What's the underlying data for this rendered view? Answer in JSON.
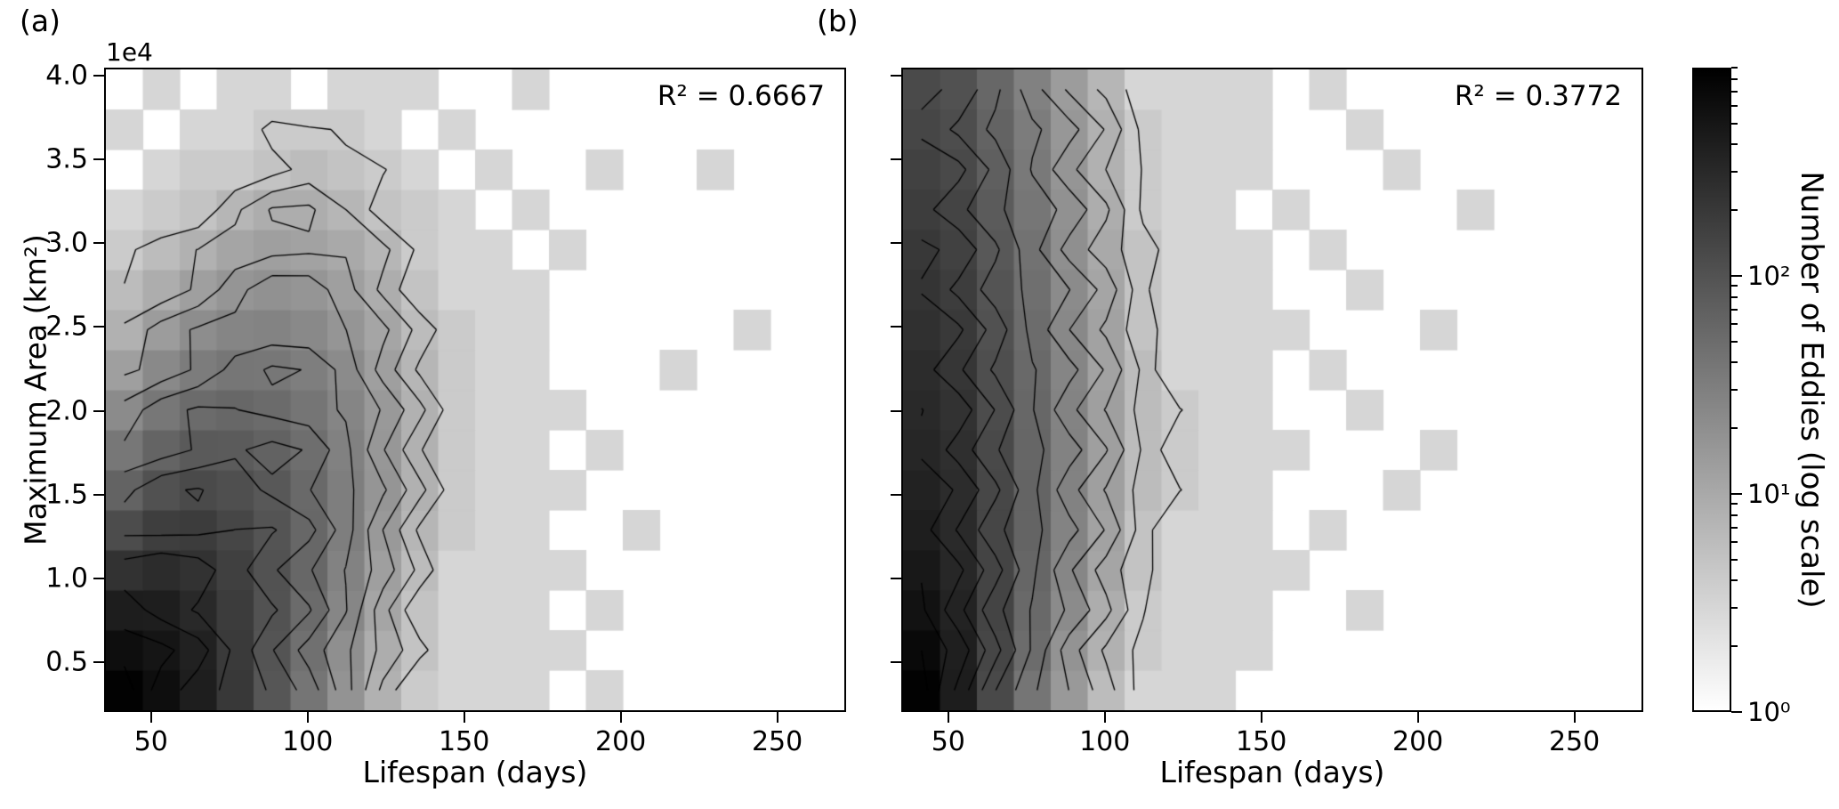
{
  "chart_data": {
    "type": "heatmap",
    "subtype": "2d-histogram-with-contours",
    "colormap": "binary grayscale, white (low) to black (high), log normalization",
    "panels": [
      {
        "id": "a",
        "corner_label": "(a)",
        "r2_label": "R² = 0.6667",
        "xlabel": "Lifespan (days)",
        "ylabel": "Maximum Area (km²)",
        "y_offset_label": "1e4",
        "x_range": [
          35,
          272
        ],
        "y_range": [
          2000,
          40500
        ],
        "x_ticks": [
          50,
          100,
          150,
          200,
          250
        ],
        "x_tick_labels": [
          "50",
          "100",
          "150",
          "200",
          "250"
        ],
        "y_ticks": [
          5000,
          10000,
          15000,
          20000,
          25000,
          30000,
          35000,
          40000
        ],
        "y_tick_labels": [
          "0.5",
          "1.0",
          "1.5",
          "2.0",
          "2.5",
          "3.0",
          "3.5",
          "4.0"
        ],
        "contour_levels_log10": [
          0.7,
          0.9,
          1.1,
          1.3,
          1.5,
          1.7,
          1.9,
          2.1,
          2.3,
          2.5,
          2.7,
          2.85
        ],
        "bins": {
          "cols": 20,
          "rows": 16,
          "order": "rows bottom-to-top, cols left-to-right"
        },
        "counts": [
          [
            850,
            620,
            400,
            200,
            90,
            40,
            18,
            8,
            4,
            3,
            3,
            3,
            0,
            3,
            0,
            0,
            0,
            0,
            0,
            0
          ],
          [
            620,
            520,
            370,
            190,
            95,
            45,
            20,
            9,
            5,
            3,
            3,
            3,
            3,
            0,
            0,
            0,
            0,
            0,
            0,
            0
          ],
          [
            420,
            400,
            300,
            180,
            100,
            52,
            25,
            11,
            5,
            3,
            3,
            3,
            0,
            3,
            0,
            0,
            0,
            0,
            0,
            0
          ],
          [
            240,
            280,
            240,
            165,
            100,
            57,
            28,
            13,
            6,
            3,
            3,
            3,
            3,
            0,
            0,
            0,
            0,
            0,
            0,
            0
          ],
          [
            120,
            170,
            180,
            140,
            95,
            58,
            31,
            15,
            7,
            4,
            3,
            3,
            0,
            0,
            3,
            0,
            0,
            0,
            0,
            0
          ],
          [
            65,
            105,
            125,
            110,
            85,
            55,
            31,
            17,
            8,
            4,
            3,
            3,
            3,
            0,
            0,
            0,
            0,
            0,
            0,
            0
          ],
          [
            38,
            62,
            82,
            80,
            66,
            48,
            29,
            16,
            8,
            4,
            3,
            3,
            0,
            3,
            0,
            0,
            0,
            0,
            0,
            0
          ],
          [
            22,
            38,
            52,
            57,
            52,
            40,
            26,
            15,
            8,
            4,
            3,
            3,
            3,
            0,
            0,
            0,
            0,
            0,
            0,
            0
          ],
          [
            13,
            23,
            33,
            39,
            38,
            31,
            22,
            13,
            7,
            4,
            3,
            3,
            0,
            0,
            0,
            3,
            0,
            0,
            0,
            0
          ],
          [
            8,
            14,
            21,
            26,
            27,
            23,
            17,
            11,
            6,
            4,
            3,
            3,
            0,
            0,
            0,
            0,
            0,
            3,
            0,
            0
          ],
          [
            6,
            9,
            13,
            17,
            19,
            17,
            13,
            9,
            5,
            3,
            3,
            3,
            0,
            0,
            0,
            0,
            0,
            0,
            0,
            0
          ],
          [
            4,
            6,
            8,
            11,
            13,
            12,
            10,
            7,
            4,
            3,
            3,
            0,
            3,
            0,
            0,
            0,
            0,
            0,
            0,
            0
          ],
          [
            3,
            4,
            5,
            7,
            9,
            9,
            7,
            5,
            4,
            3,
            0,
            3,
            0,
            0,
            0,
            0,
            0,
            0,
            0,
            0
          ],
          [
            0,
            3,
            4,
            4,
            5,
            6,
            5,
            4,
            3,
            0,
            3,
            0,
            0,
            3,
            0,
            0,
            3,
            0,
            0,
            0
          ],
          [
            3,
            0,
            3,
            3,
            4,
            4,
            4,
            3,
            0,
            3,
            0,
            0,
            0,
            0,
            0,
            0,
            0,
            0,
            0,
            0
          ],
          [
            0,
            3,
            0,
            3,
            3,
            0,
            3,
            3,
            3,
            0,
            0,
            3,
            0,
            0,
            0,
            0,
            0,
            0,
            0,
            0
          ]
        ]
      },
      {
        "id": "b",
        "corner_label": "(b)",
        "r2_label": "R² = 0.3772",
        "xlabel": "Lifespan (days)",
        "x_range": [
          35,
          272
        ],
        "y_range": [
          2000,
          40500
        ],
        "x_ticks": [
          50,
          100,
          150,
          200,
          250
        ],
        "x_tick_labels": [
          "50",
          "100",
          "150",
          "200",
          "250"
        ],
        "y_ticks": [
          5000,
          10000,
          15000,
          20000,
          25000,
          30000,
          35000,
          40000
        ],
        "contour_levels_log10": [
          0.7,
          0.9,
          1.1,
          1.3,
          1.5,
          1.7,
          1.9,
          2.1,
          2.3,
          2.5,
          2.7,
          2.85
        ],
        "bins": {
          "cols": 20,
          "rows": 16,
          "order": "rows bottom-to-top, cols left-to-right"
        },
        "counts": [
          [
            850,
            420,
            130,
            40,
            15,
            6,
            3,
            3,
            3,
            0,
            0,
            0,
            0,
            0,
            0,
            0,
            0,
            0,
            0,
            0
          ],
          [
            700,
            390,
            140,
            50,
            18,
            8,
            4,
            3,
            3,
            3,
            0,
            0,
            0,
            0,
            0,
            0,
            0,
            0,
            0,
            0
          ],
          [
            560,
            350,
            145,
            55,
            22,
            9,
            4,
            3,
            3,
            3,
            0,
            0,
            3,
            0,
            0,
            0,
            0,
            0,
            0,
            0
          ],
          [
            470,
            320,
            145,
            60,
            25,
            11,
            5,
            3,
            3,
            3,
            3,
            0,
            0,
            0,
            0,
            0,
            0,
            0,
            0,
            0
          ],
          [
            400,
            295,
            140,
            62,
            27,
            12,
            5,
            3,
            3,
            3,
            0,
            3,
            0,
            0,
            0,
            0,
            0,
            0,
            0,
            0
          ],
          [
            360,
            275,
            135,
            62,
            28,
            13,
            6,
            4,
            3,
            3,
            0,
            0,
            0,
            3,
            0,
            0,
            0,
            0,
            0,
            0
          ],
          [
            330,
            255,
            128,
            60,
            28,
            13,
            6,
            4,
            3,
            3,
            3,
            0,
            0,
            0,
            3,
            0,
            0,
            0,
            0,
            0
          ],
          [
            300,
            235,
            120,
            58,
            27,
            13,
            6,
            4,
            3,
            3,
            0,
            0,
            3,
            0,
            0,
            0,
            0,
            0,
            0,
            0
          ],
          [
            275,
            215,
            112,
            54,
            26,
            12,
            6,
            3,
            3,
            3,
            0,
            3,
            0,
            0,
            0,
            0,
            0,
            0,
            0,
            0
          ],
          [
            250,
            195,
            103,
            50,
            24,
            12,
            5,
            3,
            3,
            3,
            3,
            0,
            0,
            0,
            3,
            0,
            0,
            0,
            0,
            0
          ],
          [
            225,
            178,
            95,
            46,
            22,
            11,
            5,
            3,
            3,
            3,
            0,
            0,
            3,
            0,
            0,
            0,
            0,
            0,
            0,
            0
          ],
          [
            200,
            160,
            87,
            43,
            20,
            10,
            5,
            3,
            3,
            3,
            0,
            3,
            0,
            0,
            0,
            0,
            0,
            0,
            0,
            0
          ],
          [
            178,
            145,
            79,
            39,
            19,
            9,
            4,
            3,
            3,
            0,
            3,
            0,
            0,
            0,
            0,
            3,
            0,
            0,
            0,
            0
          ],
          [
            158,
            130,
            71,
            36,
            17,
            8,
            4,
            3,
            3,
            3,
            0,
            0,
            0,
            3,
            0,
            0,
            0,
            0,
            0,
            0
          ],
          [
            140,
            116,
            64,
            33,
            16,
            8,
            4,
            3,
            3,
            3,
            0,
            0,
            3,
            0,
            0,
            0,
            0,
            0,
            0,
            0
          ],
          [
            124,
            103,
            58,
            29,
            14,
            7,
            3,
            3,
            3,
            3,
            0,
            3,
            0,
            0,
            0,
            0,
            0,
            0,
            0,
            0
          ]
        ]
      }
    ],
    "colorbar": {
      "label": "Number of Eddies (log scale)",
      "scale": "log",
      "vmin": 1,
      "vmax": 900,
      "tick_values": [
        1,
        10,
        100
      ],
      "tick_labels": [
        "10⁰",
        "10¹",
        "10²"
      ],
      "colors": {
        "low": "#ffffff",
        "high": "#000000"
      }
    }
  }
}
